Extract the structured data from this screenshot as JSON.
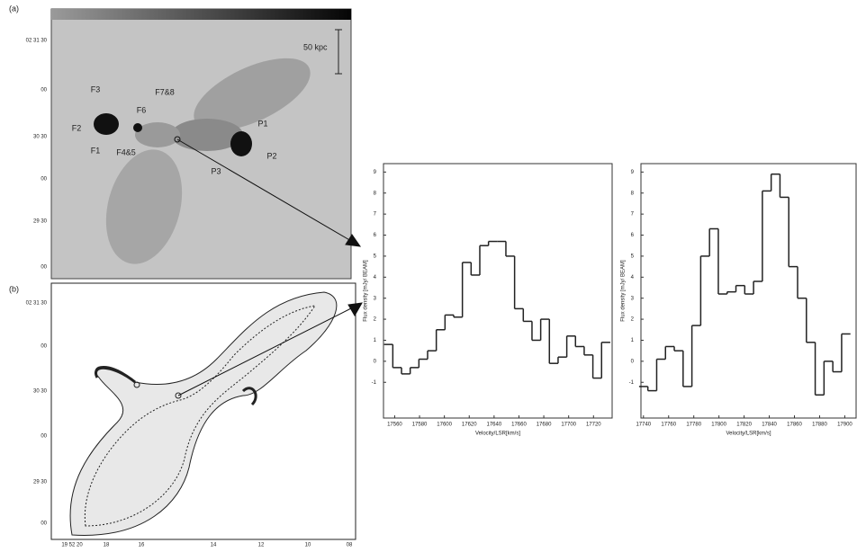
{
  "panel_a": {
    "label": "(a)",
    "dec_labels": [
      "02 31 30",
      "00",
      "30 30",
      "00",
      "29 30",
      "00"
    ],
    "annotations": [
      "F3",
      "F2",
      "F1",
      "F6",
      "F4&5",
      "F7&8",
      "P1",
      "P2",
      "P3"
    ],
    "scale_bar": "50 kpc"
  },
  "panel_b": {
    "label": "(b)",
    "dec_labels": [
      "02 31 30",
      "00",
      "30 30",
      "00",
      "29 30",
      "00"
    ],
    "ra_labels": [
      "19 52 20",
      "18",
      "16",
      "14",
      "12",
      "10",
      "08"
    ]
  },
  "chart_data": [
    {
      "type": "step",
      "xlabel": "Velocity/LSR[km/s]",
      "ylabel": "Flux density [mJy/ BEAM]",
      "color": "#222222",
      "x": [
        17555,
        17562,
        17569,
        17576,
        17583,
        17590,
        17597,
        17604,
        17611,
        17618,
        17625,
        17632,
        17639,
        17646,
        17653,
        17660,
        17667,
        17674,
        17681,
        17688,
        17695,
        17702,
        17709,
        17716,
        17723,
        17730
      ],
      "values": [
        0.8,
        -0.3,
        -0.6,
        -0.3,
        0.1,
        0.5,
        1.5,
        2.2,
        2.1,
        4.7,
        4.1,
        5.5,
        5.7,
        5.7,
        5.0,
        2.5,
        1.9,
        1.0,
        2.0,
        -0.1,
        0.2,
        1.2,
        0.7,
        0.3,
        -0.8,
        0.9
      ],
      "xlim": [
        17551,
        17735
      ],
      "ylim": [
        -2.7,
        9.4
      ],
      "xticks": [
        17560,
        17580,
        17600,
        17620,
        17640,
        17660,
        17680,
        17700,
        17720
      ],
      "yticks": [
        -1,
        0,
        1,
        2,
        3,
        4,
        5,
        6,
        7,
        8,
        9
      ]
    },
    {
      "type": "step",
      "xlabel": "Velocity/LSR[km/s]",
      "ylabel": "Flux density [mJy/ BEAM]",
      "color": "#222222",
      "x": [
        17740,
        17747,
        17754,
        17761,
        17768,
        17775,
        17782,
        17789,
        17796,
        17803,
        17810,
        17817,
        17824,
        17831,
        17838,
        17845,
        17852,
        17859,
        17866,
        17873,
        17880,
        17887,
        17894,
        17901
      ],
      "values": [
        -1.2,
        -1.4,
        0.1,
        0.7,
        0.5,
        -1.2,
        1.7,
        5.0,
        6.3,
        3.2,
        3.3,
        3.6,
        3.2,
        3.8,
        8.1,
        8.9,
        7.8,
        4.5,
        3.0,
        0.9,
        -1.6,
        0.0,
        -0.5,
        1.3
      ],
      "xlim": [
        17738,
        17909
      ],
      "ylim": [
        -2.7,
        9.4
      ],
      "xticks": [
        17740,
        17760,
        17780,
        17800,
        17820,
        17840,
        17860,
        17880,
        17900
      ],
      "yticks": [
        -1,
        0,
        1,
        2,
        3,
        4,
        5,
        6,
        7,
        8,
        9
      ]
    }
  ]
}
